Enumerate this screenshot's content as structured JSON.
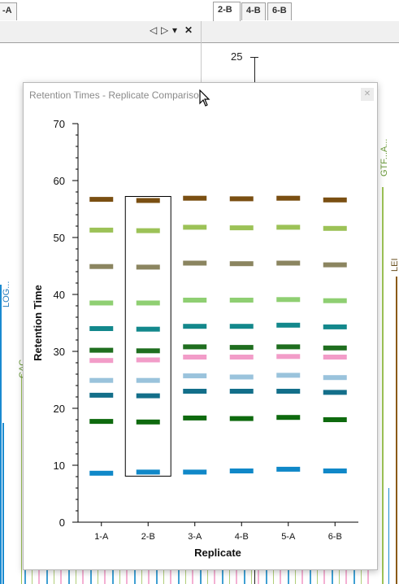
{
  "left_pane": {
    "tab_label": "-A",
    "vertical_labels": [
      "LOG...",
      "CAC"
    ]
  },
  "right_pane": {
    "tabs": [
      {
        "label": "2-B",
        "active": true
      },
      {
        "label": "4-B",
        "active": false
      },
      {
        "label": "6-B",
        "active": false
      }
    ],
    "axis_tick": "25",
    "vertical_labels": [
      "GTF...A...",
      "LEI"
    ]
  },
  "pane_controls": {
    "prev": "◁",
    "next": "▷",
    "menu": "▾",
    "close": "✕"
  },
  "dialog": {
    "title": "Retention Times - Replicate Comparison",
    "close_icon": "close-icon"
  },
  "colors": {
    "brown": "#7a4f12",
    "lightgreen": "#9cc257",
    "olive": "#8b8560",
    "palegreen": "#8fcf72",
    "teal": "#13888c",
    "darkgreen": "#1f6e1f",
    "pink": "#f29cc8",
    "lightblue": "#9ac3dc",
    "darkteal": "#136f8a",
    "green": "#0e6a0e",
    "blue": "#1088c8"
  },
  "chart_data": {
    "type": "scatter",
    "xlabel": "Replicate",
    "ylabel": "Retention Time",
    "ylim": [
      0,
      70
    ],
    "yticks": [
      0,
      10,
      20,
      30,
      40,
      50,
      60,
      70
    ],
    "categories": [
      "1-A",
      "2-B",
      "3-A",
      "4-B",
      "5-A",
      "6-B"
    ],
    "selected_category": "2-B",
    "series": [
      {
        "color": "brown",
        "values": [
          56.7,
          56.5,
          56.9,
          56.8,
          56.9,
          56.6
        ]
      },
      {
        "color": "lightgreen",
        "values": [
          51.3,
          51.2,
          51.8,
          51.7,
          51.8,
          51.6
        ]
      },
      {
        "color": "olive",
        "values": [
          44.9,
          44.8,
          45.5,
          45.4,
          45.5,
          45.2
        ]
      },
      {
        "color": "palegreen",
        "values": [
          38.5,
          38.5,
          39.0,
          39.0,
          39.1,
          38.9
        ]
      },
      {
        "color": "teal",
        "values": [
          34.0,
          33.9,
          34.4,
          34.4,
          34.6,
          34.3
        ]
      },
      {
        "color": "darkgreen",
        "values": [
          30.2,
          30.1,
          30.8,
          30.7,
          30.8,
          30.6
        ]
      },
      {
        "color": "pink",
        "values": [
          28.4,
          28.5,
          29.0,
          29.0,
          29.1,
          29.0
        ]
      },
      {
        "color": "lightblue",
        "values": [
          24.9,
          24.9,
          25.7,
          25.5,
          25.8,
          25.4
        ]
      },
      {
        "color": "darkteal",
        "values": [
          22.3,
          22.2,
          23.0,
          23.0,
          23.0,
          22.8
        ]
      },
      {
        "color": "green",
        "values": [
          17.7,
          17.6,
          18.3,
          18.2,
          18.4,
          18.0
        ]
      },
      {
        "color": "blue",
        "values": [
          8.6,
          8.8,
          8.8,
          9.0,
          9.3,
          9.0
        ]
      }
    ]
  }
}
